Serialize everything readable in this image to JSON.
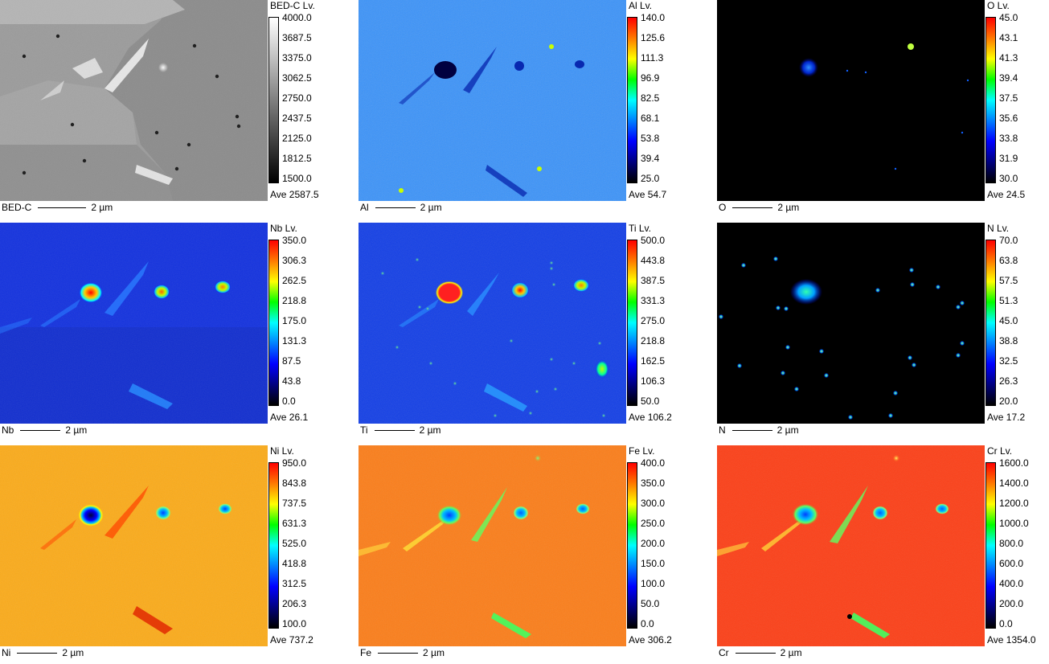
{
  "panels": [
    {
      "element": "BED-C",
      "title": "BED-C  Lv.",
      "ticks": [
        "4000.0",
        "3687.5",
        "3375.0",
        "3062.5",
        "2750.0",
        "2437.5",
        "2125.0",
        "1812.5",
        "1500.0"
      ],
      "ave": "Ave 2587.5",
      "label": "BED-C",
      "scale": "2 µm",
      "colormap": "gray"
    },
    {
      "element": "Al",
      "title": "Al  Lv.",
      "ticks": [
        "140.0",
        "125.6",
        "111.3",
        "96.9",
        "82.5",
        "68.1",
        "53.8",
        "39.4",
        "25.0"
      ],
      "ave": "Ave 54.7",
      "label": "Al",
      "scale": "2 µm",
      "colormap": "jet"
    },
    {
      "element": "O",
      "title": "O  Lv.",
      "ticks": [
        "45.0",
        "43.1",
        "41.3",
        "39.4",
        "37.5",
        "35.6",
        "33.8",
        "31.9",
        "30.0"
      ],
      "ave": "Ave 24.5",
      "label": "O",
      "scale": "2 µm",
      "colormap": "jet"
    },
    {
      "element": "Nb",
      "title": "Nb  Lv.",
      "ticks": [
        "350.0",
        "306.3",
        "262.5",
        "218.8",
        "175.0",
        "131.3",
        "87.5",
        "43.8",
        "0.0"
      ],
      "ave": "Ave 26.1",
      "label": "Nb",
      "scale": "2 µm",
      "colormap": "jet"
    },
    {
      "element": "Ti",
      "title": "Ti  Lv.",
      "ticks": [
        "500.0",
        "443.8",
        "387.5",
        "331.3",
        "275.0",
        "218.8",
        "162.5",
        "106.3",
        "50.0"
      ],
      "ave": "Ave 106.2",
      "label": "Ti",
      "scale": "2 µm",
      "colormap": "jet"
    },
    {
      "element": "N",
      "title": "N  Lv.",
      "ticks": [
        "70.0",
        "63.8",
        "57.5",
        "51.3",
        "45.0",
        "38.8",
        "32.5",
        "26.3",
        "20.0"
      ],
      "ave": "Ave 17.2",
      "label": "N",
      "scale": "2 µm",
      "colormap": "jet"
    },
    {
      "element": "Ni",
      "title": "Ni  Lv.",
      "ticks": [
        "950.0",
        "843.8",
        "737.5",
        "631.3",
        "525.0",
        "418.8",
        "312.5",
        "206.3",
        "100.0"
      ],
      "ave": "Ave 737.2",
      "label": "Ni",
      "scale": "2 µm",
      "colormap": "jet"
    },
    {
      "element": "Fe",
      "title": "Fe  Lv.",
      "ticks": [
        "400.0",
        "350.0",
        "300.0",
        "250.0",
        "200.0",
        "150.0",
        "100.0",
        "50.0",
        "0.0"
      ],
      "ave": "Ave 306.2",
      "label": "Fe",
      "scale": "2 µm",
      "colormap": "jet"
    },
    {
      "element": "Cr",
      "title": "Cr  Lv.",
      "ticks": [
        "1600.0",
        "1400.0",
        "1200.0",
        "1000.0",
        "800.0",
        "600.0",
        "400.0",
        "200.0",
        "0.0"
      ],
      "ave": "Ave 1354.0",
      "label": "Cr",
      "scale": "2 µm",
      "colormap": "jet"
    }
  ],
  "colors": {
    "jet": [
      "#ff0000",
      "#ff7a00",
      "#ffff00",
      "#00ff00",
      "#00ffff",
      "#0080ff",
      "#0000ff",
      "#000080",
      "#000000"
    ],
    "gray": [
      "#ffffff",
      "#000000"
    ]
  }
}
